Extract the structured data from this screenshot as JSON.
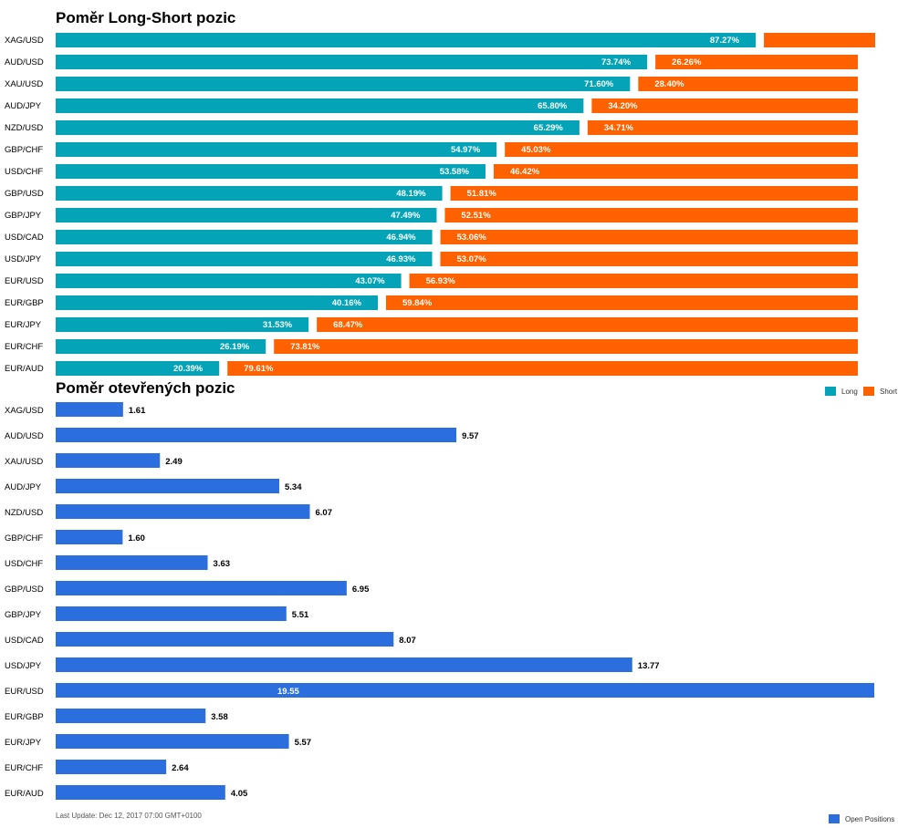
{
  "colors": {
    "long": "#05a3b8",
    "short": "#fe6100",
    "open": "#2b6fdf"
  },
  "chart_data": [
    {
      "type": "bar",
      "orientation": "horizontal",
      "stacked": true,
      "title": "Poměr Long-Short pozic",
      "categories": [
        "XAG/USD",
        "AUD/USD",
        "XAU/USD",
        "AUD/JPY",
        "NZD/USD",
        "GBP/CHF",
        "USD/CHF",
        "GBP/USD",
        "GBP/JPY",
        "USD/CAD",
        "USD/JPY",
        "EUR/USD",
        "EUR/GBP",
        "EUR/JPY",
        "EUR/CHF",
        "EUR/AUD"
      ],
      "series": [
        {
          "name": "Long",
          "values": [
            87.27,
            73.74,
            71.6,
            65.8,
            65.29,
            54.97,
            53.58,
            48.19,
            47.49,
            46.94,
            46.93,
            43.07,
            40.16,
            31.53,
            26.19,
            20.39
          ],
          "labels": [
            "87.27%",
            "73.74%",
            "71.60%",
            "65.80%",
            "65.29%",
            "54.97%",
            "53.58%",
            "48.19%",
            "47.49%",
            "46.94%",
            "46.93%",
            "43.07%",
            "40.16%",
            "31.53%",
            "26.19%",
            "20.39%"
          ]
        },
        {
          "name": "Short",
          "values": [
            12.73,
            26.26,
            28.4,
            34.2,
            34.71,
            45.03,
            46.42,
            51.81,
            52.51,
            53.06,
            53.07,
            56.93,
            59.84,
            68.47,
            73.81,
            79.61
          ],
          "labels": [
            "",
            "26.26%",
            "28.40%",
            "34.20%",
            "34.71%",
            "45.03%",
            "46.42%",
            "51.81%",
            "52.51%",
            "53.06%",
            "53.07%",
            "56.93%",
            "59.84%",
            "68.47%",
            "73.81%",
            "79.61%"
          ]
        }
      ],
      "legend": "bottom-right"
    },
    {
      "type": "bar",
      "orientation": "horizontal",
      "title": "Poměr otevřených pozic",
      "categories": [
        "XAG/USD",
        "AUD/USD",
        "XAU/USD",
        "AUD/JPY",
        "NZD/USD",
        "GBP/CHF",
        "USD/CHF",
        "GBP/USD",
        "GBP/JPY",
        "USD/CAD",
        "USD/JPY",
        "EUR/USD",
        "EUR/GBP",
        "EUR/JPY",
        "EUR/CHF",
        "EUR/AUD"
      ],
      "series": [
        {
          "name": "Open Positions",
          "values": [
            1.61,
            9.57,
            2.49,
            5.34,
            6.07,
            1.6,
            3.63,
            6.95,
            5.51,
            8.07,
            13.77,
            19.55,
            3.58,
            5.57,
            2.64,
            4.05
          ],
          "labels": [
            "1.61",
            "9.57",
            "2.49",
            "5.34",
            "6.07",
            "1.60",
            "3.63",
            "6.95",
            "5.51",
            "8.07",
            "13.77",
            "19.55",
            "3.58",
            "5.57",
            "2.64",
            "4.05"
          ]
        }
      ],
      "legend": "bottom-right"
    }
  ],
  "legend": {
    "long": "Long",
    "short": "Short",
    "open": "Open Positions"
  },
  "footer": "Last Update: Dec 12, 2017 07:00 GMT+0100"
}
